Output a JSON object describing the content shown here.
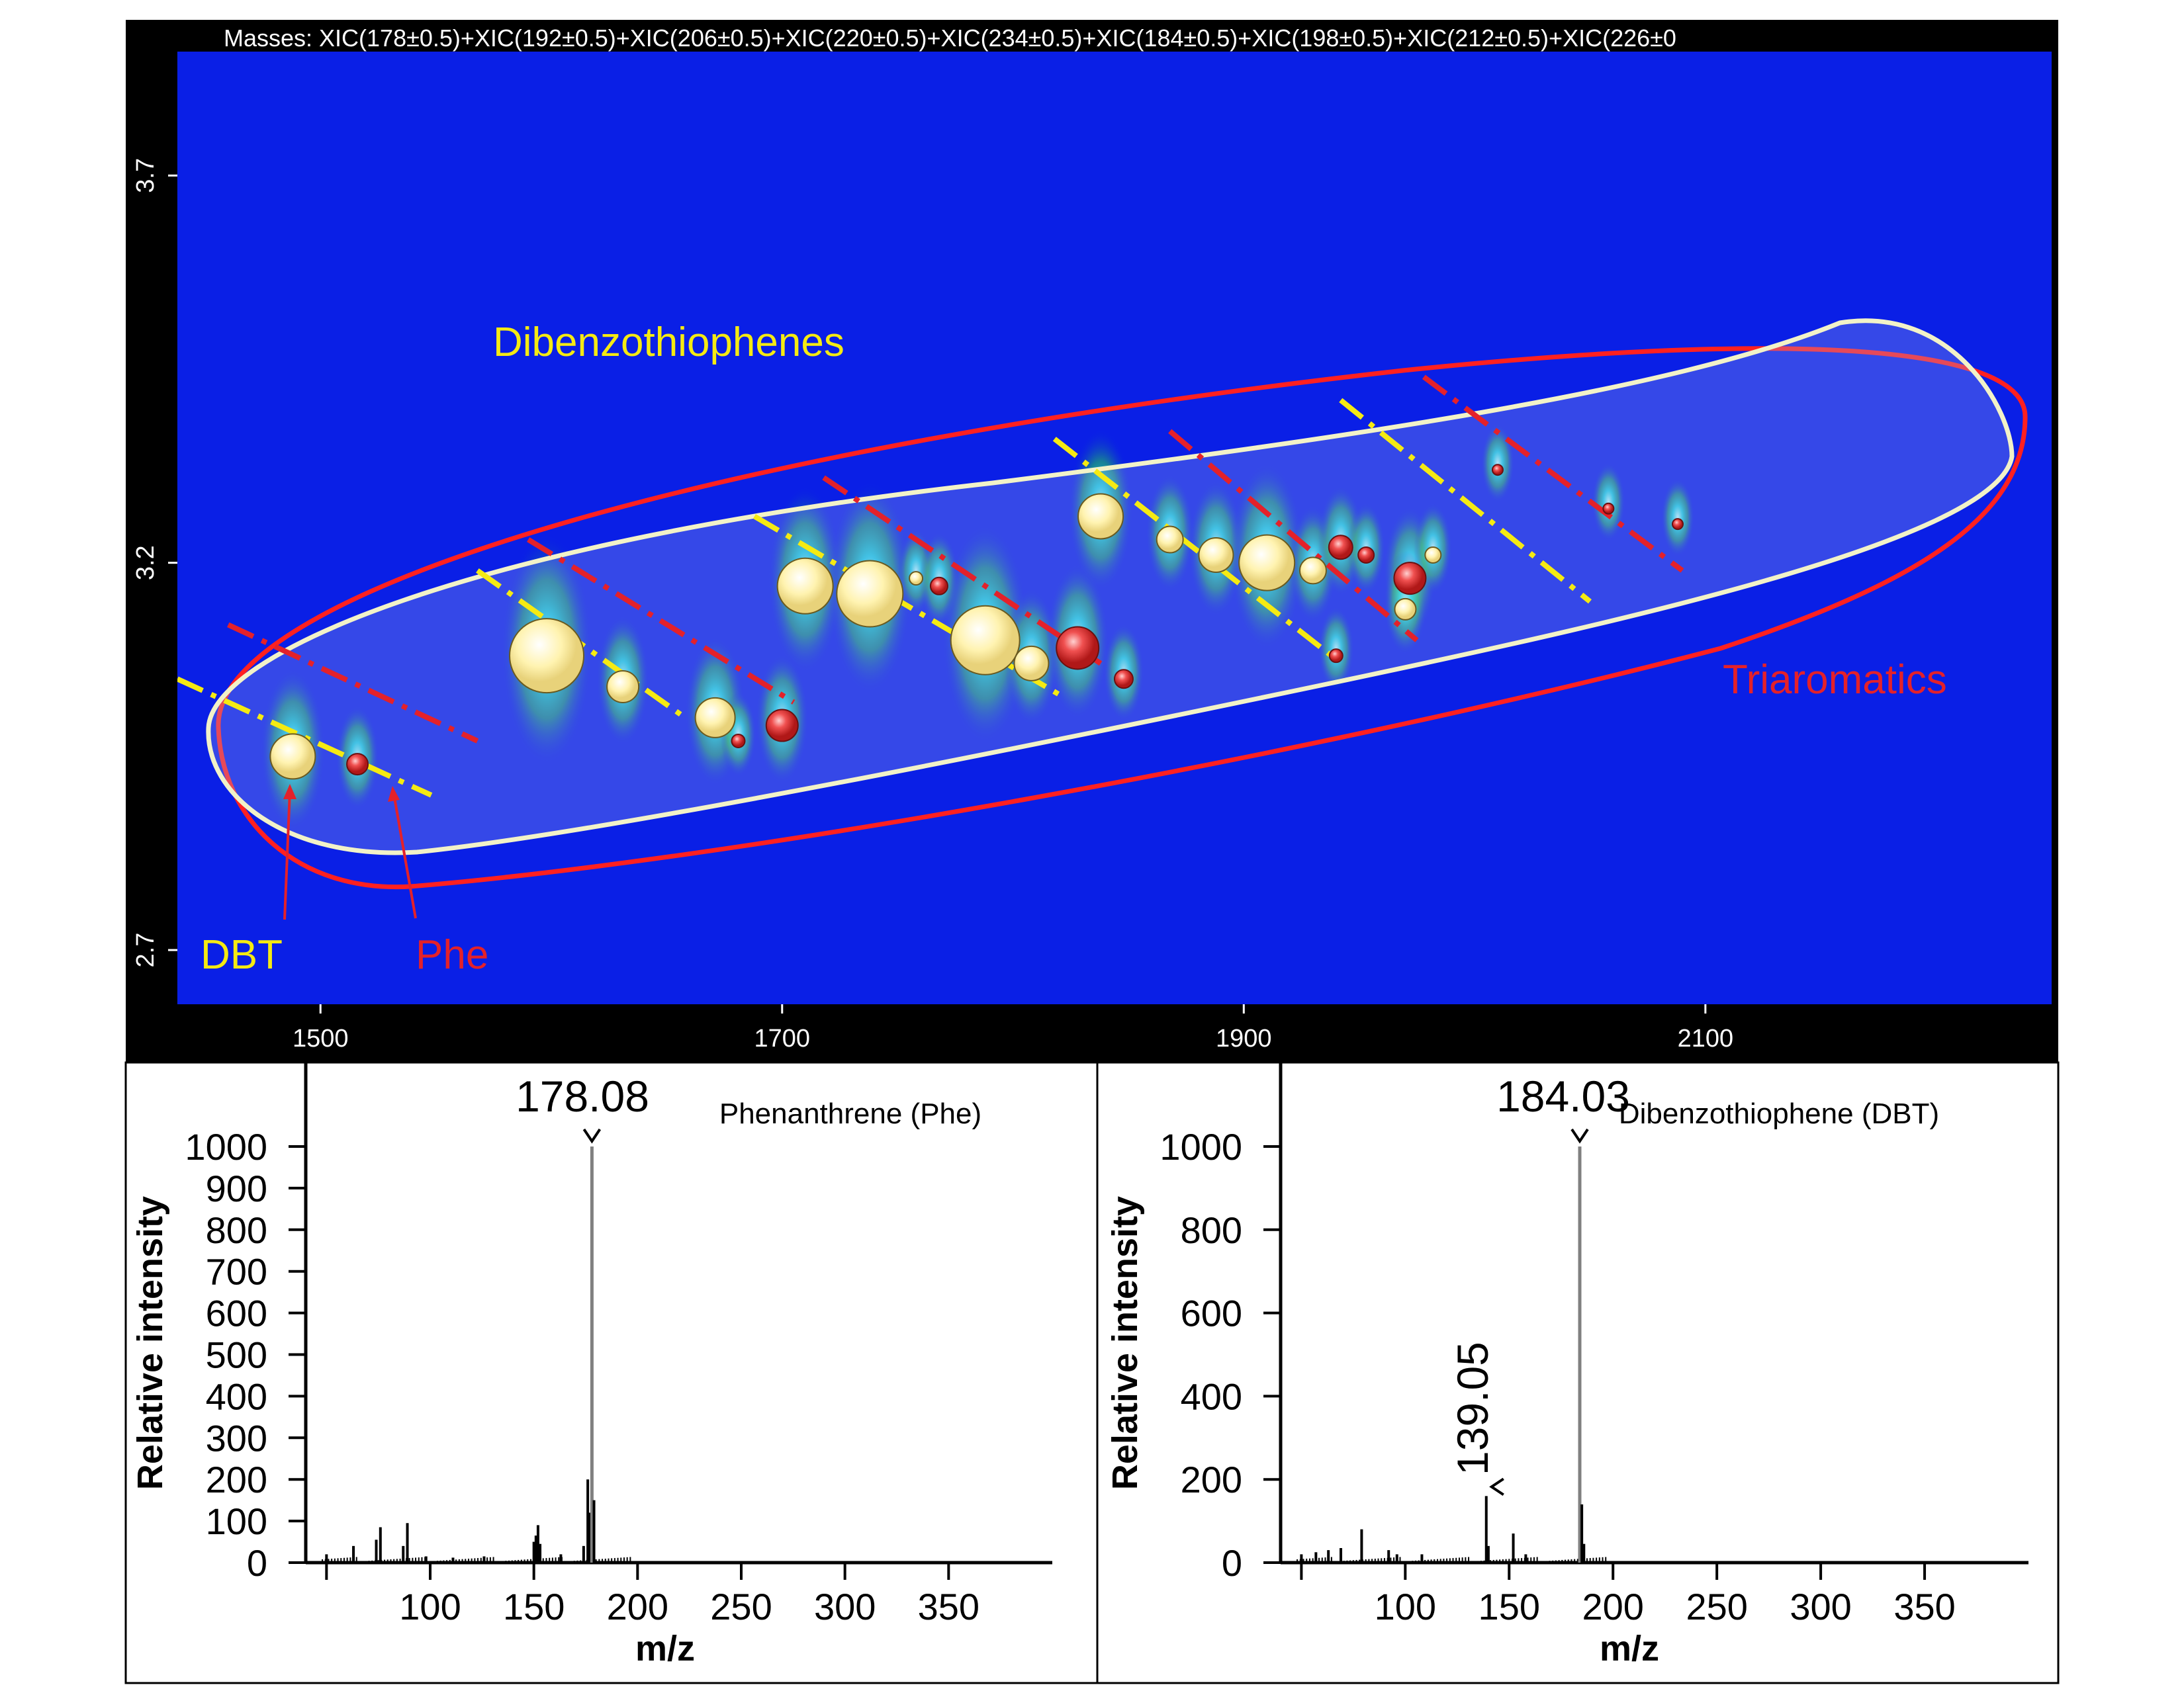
{
  "chart_data": [
    {
      "type": "heatmap",
      "title": "Masses: XIC(178±0.5)+XIC(192±0.5)+XIC(206±0.5)+XIC(220±0.5)+XIC(234±0.5)+XIC(184±0.5)+XIC(198±0.5)+XIC(212±0.5)+XIC(226±0",
      "xlim": [
        1438,
        2250
      ],
      "ylim": [
        2.63,
        3.86
      ],
      "x_ticks": [
        "1500",
        "1700",
        "1900",
        "2100"
      ],
      "y_ticks": [
        "3.7",
        "3.2",
        "2.7"
      ],
      "annotations": {
        "dibenzothiophenes": "Dibenzothiophenes",
        "triaromatics": "Triaromatics",
        "dbt": "DBT",
        "phe": "Phe"
      },
      "colors": {
        "background": "#0a1fe6",
        "dbt_group": "#fff2a8",
        "triaromatic_group": "#e0303a",
        "dbt_label": "#f5ea12",
        "tri_label": "#e4212a"
      },
      "peaks": [
        {
          "x": 1488,
          "y": 2.95,
          "size": 34,
          "group": "dbt"
        },
        {
          "x": 1516,
          "y": 2.94,
          "size": 16,
          "group": "tri"
        },
        {
          "x": 1598,
          "y": 3.08,
          "size": 56,
          "group": "dbt"
        },
        {
          "x": 1631,
          "y": 3.04,
          "size": 24,
          "group": "dbt"
        },
        {
          "x": 1671,
          "y": 3.0,
          "size": 30,
          "group": "dbt"
        },
        {
          "x": 1681,
          "y": 2.97,
          "size": 10,
          "group": "tri"
        },
        {
          "x": 1700,
          "y": 2.99,
          "size": 24,
          "group": "tri"
        },
        {
          "x": 1710,
          "y": 3.17,
          "size": 42,
          "group": "dbt"
        },
        {
          "x": 1738,
          "y": 3.16,
          "size": 50,
          "group": "dbt"
        },
        {
          "x": 1758,
          "y": 3.18,
          "size": 10,
          "group": "dbt"
        },
        {
          "x": 1768,
          "y": 3.17,
          "size": 13,
          "group": "tri"
        },
        {
          "x": 1788,
          "y": 3.1,
          "size": 52,
          "group": "dbt"
        },
        {
          "x": 1808,
          "y": 3.07,
          "size": 26,
          "group": "dbt"
        },
        {
          "x": 1828,
          "y": 3.09,
          "size": 32,
          "group": "tri"
        },
        {
          "x": 1838,
          "y": 3.26,
          "size": 34,
          "group": "dbt"
        },
        {
          "x": 1848,
          "y": 3.05,
          "size": 14,
          "group": "tri"
        },
        {
          "x": 1868,
          "y": 3.23,
          "size": 20,
          "group": "dbt"
        },
        {
          "x": 1888,
          "y": 3.21,
          "size": 26,
          "group": "dbt"
        },
        {
          "x": 1910,
          "y": 3.2,
          "size": 42,
          "group": "dbt"
        },
        {
          "x": 1930,
          "y": 3.19,
          "size": 20,
          "group": "dbt"
        },
        {
          "x": 1942,
          "y": 3.22,
          "size": 18,
          "group": "tri"
        },
        {
          "x": 1953,
          "y": 3.21,
          "size": 12,
          "group": "tri"
        },
        {
          "x": 1972,
          "y": 3.18,
          "size": 24,
          "group": "tri"
        },
        {
          "x": 1970,
          "y": 3.14,
          "size": 16,
          "group": "dbt"
        },
        {
          "x": 1982,
          "y": 3.21,
          "size": 12,
          "group": "dbt"
        },
        {
          "x": 1940,
          "y": 3.08,
          "size": 10,
          "group": "tri"
        },
        {
          "x": 2010,
          "y": 3.32,
          "size": 8,
          "group": "tri"
        },
        {
          "x": 2058,
          "y": 3.27,
          "size": 8,
          "group": "tri"
        },
        {
          "x": 2088,
          "y": 3.25,
          "size": 8,
          "group": "tri"
        }
      ]
    },
    {
      "type": "bar",
      "title": "Phenanthrene (Phe)",
      "xlabel": "m/z",
      "ylabel": "Relative intensity",
      "xlim": [
        40,
        400
      ],
      "ylim": [
        0,
        1000
      ],
      "x_ticks": [
        "100",
        "150",
        "200",
        "250",
        "300",
        "350"
      ],
      "y_ticks": [
        "0",
        "100",
        "200",
        "300",
        "400",
        "500",
        "600",
        "700",
        "800",
        "900",
        "1000"
      ],
      "peak_label": "178.08",
      "peaks": [
        {
          "mz": 50,
          "intensity": 20
        },
        {
          "mz": 63,
          "intensity": 40
        },
        {
          "mz": 74,
          "intensity": 55
        },
        {
          "mz": 76,
          "intensity": 85
        },
        {
          "mz": 87,
          "intensity": 40
        },
        {
          "mz": 89,
          "intensity": 95
        },
        {
          "mz": 98,
          "intensity": 15
        },
        {
          "mz": 111,
          "intensity": 12
        },
        {
          "mz": 126,
          "intensity": 15
        },
        {
          "mz": 150,
          "intensity": 50
        },
        {
          "mz": 151,
          "intensity": 65
        },
        {
          "mz": 152,
          "intensity": 90
        },
        {
          "mz": 153,
          "intensity": 45
        },
        {
          "mz": 163,
          "intensity": 20
        },
        {
          "mz": 174,
          "intensity": 40
        },
        {
          "mz": 176,
          "intensity": 200
        },
        {
          "mz": 177,
          "intensity": 120
        },
        {
          "mz": 178,
          "intensity": 1000
        },
        {
          "mz": 179,
          "intensity": 150
        }
      ]
    },
    {
      "type": "bar",
      "title": "Dibenzothiophene (DBT)",
      "xlabel": "m/z",
      "ylabel": "Relative intensity",
      "xlim": [
        40,
        400
      ],
      "ylim": [
        0,
        1000
      ],
      "x_ticks": [
        "100",
        "150",
        "200",
        "250",
        "300",
        "350"
      ],
      "y_ticks": [
        "0",
        "200",
        "400",
        "600",
        "800",
        "1000"
      ],
      "peak_label": "184.03",
      "secondary_label": "139.05",
      "peaks": [
        {
          "mz": 50,
          "intensity": 20
        },
        {
          "mz": 57,
          "intensity": 25
        },
        {
          "mz": 63,
          "intensity": 30
        },
        {
          "mz": 69,
          "intensity": 35
        },
        {
          "mz": 79,
          "intensity": 80
        },
        {
          "mz": 92,
          "intensity": 30
        },
        {
          "mz": 96,
          "intensity": 20
        },
        {
          "mz": 108,
          "intensity": 20
        },
        {
          "mz": 139,
          "intensity": 160
        },
        {
          "mz": 140,
          "intensity": 40
        },
        {
          "mz": 152,
          "intensity": 70
        },
        {
          "mz": 158,
          "intensity": 20
        },
        {
          "mz": 184,
          "intensity": 1000
        },
        {
          "mz": 185,
          "intensity": 140
        },
        {
          "mz": 186,
          "intensity": 45
        }
      ]
    }
  ]
}
